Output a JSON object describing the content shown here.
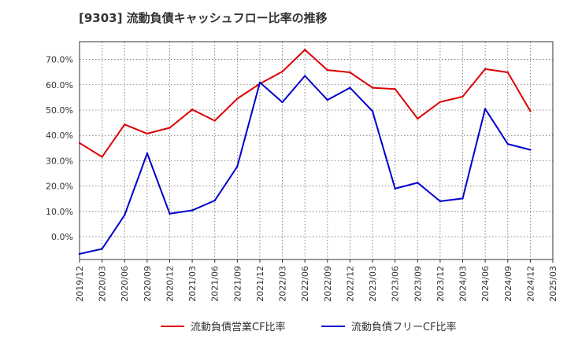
{
  "chart_data": {
    "type": "line",
    "title": "[9303]  流動負債キャッシュフロー比率の推移",
    "x": [
      "2019/12",
      "2020/03",
      "2020/06",
      "2020/09",
      "2020/12",
      "2021/03",
      "2021/06",
      "2021/09",
      "2021/12",
      "2022/03",
      "2022/06",
      "2022/09",
      "2022/12",
      "2023/03",
      "2023/06",
      "2023/09",
      "2023/12",
      "2024/03",
      "2024/06",
      "2024/09",
      "2024/12",
      "2025/03"
    ],
    "xlim": [
      "2019/12",
      "2025/03"
    ],
    "ylim": [
      -9,
      77
    ],
    "yticks": [
      "0.0%",
      "10.0%",
      "20.0%",
      "30.0%",
      "40.0%",
      "50.0%",
      "60.0%",
      "70.0%"
    ],
    "ytick_values": [
      0,
      10,
      20,
      30,
      40,
      50,
      60,
      70
    ],
    "grid": true,
    "legend": "bottom",
    "series": [
      {
        "name": "流動負債営業CF比率",
        "color": "#dd0000",
        "values": [
          37.0,
          31.5,
          44.3,
          40.7,
          43.0,
          50.2,
          45.8,
          54.5,
          60.4,
          65.2,
          73.8,
          65.8,
          64.9,
          58.8,
          58.3,
          46.6,
          53.2,
          55.3,
          66.2,
          64.9,
          49.6,
          null
        ]
      },
      {
        "name": "流動負債フリーCF比率",
        "color": "#0000cc",
        "values": [
          -6.8,
          -4.8,
          8.5,
          32.9,
          9.1,
          10.4,
          14.3,
          27.7,
          60.9,
          53.1,
          63.5,
          54.0,
          58.8,
          49.6,
          19.0,
          21.3,
          14.0,
          15.1,
          50.5,
          36.6,
          34.3,
          null
        ]
      }
    ]
  }
}
